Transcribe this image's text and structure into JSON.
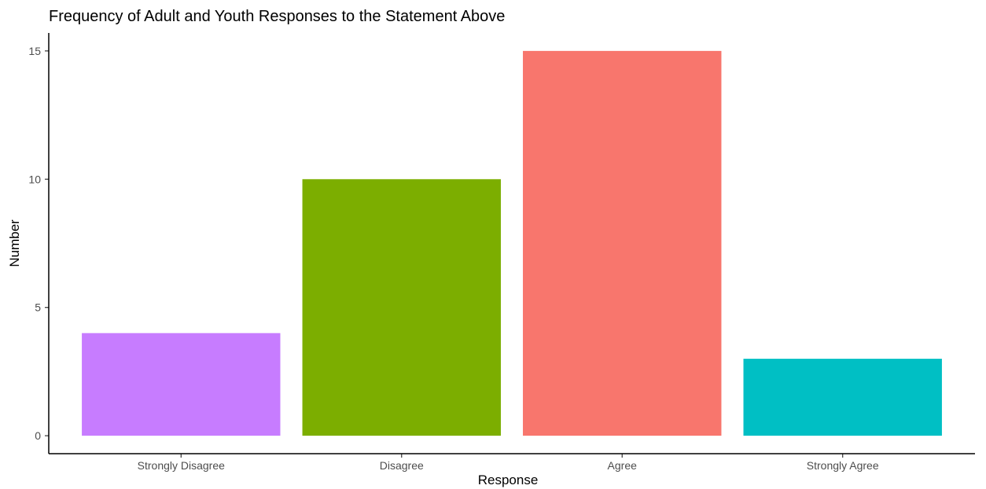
{
  "chart_data": {
    "type": "bar",
    "title": "Frequency of Adult and Youth Responses to the Statement Above",
    "xlabel": "Response",
    "ylabel": "Number",
    "categories": [
      "Strongly Disagree",
      "Disagree",
      "Agree",
      "Strongly Agree"
    ],
    "values": [
      4,
      10,
      15,
      3
    ],
    "colors": [
      "#C77CFF",
      "#7CAE00",
      "#F8766D",
      "#00BFC4"
    ],
    "yticks": [
      0,
      5,
      10,
      15
    ],
    "ylim": [
      -0.7,
      15.7
    ],
    "grid": false,
    "legend": "none"
  }
}
